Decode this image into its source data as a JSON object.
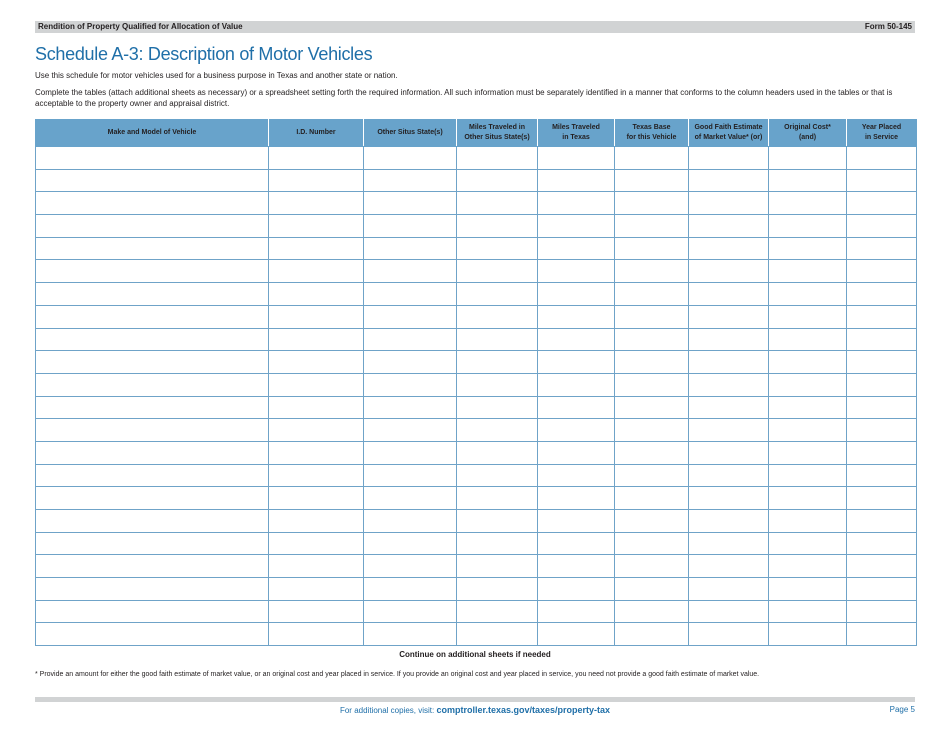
{
  "header": {
    "left": "Rendition of Property Qualified for Allocation of Value",
    "right": "Form 50-145"
  },
  "title": "Schedule A-3: Description of Motor Vehicles",
  "intro1": "Use this schedule for motor vehicles used for a business purpose in Texas and another state or nation.",
  "intro2": "Complete the tables (attach additional sheets as necessary) or a spreadsheet setting forth the required information. All such information must be separately identified in a manner that conforms to the column headers used in the tables or that is acceptable to the property owner and appraisal district.",
  "table": {
    "columns": [
      {
        "l1": "Make and Model of Vehicle",
        "l2": ""
      },
      {
        "l1": "I.D. Number",
        "l2": ""
      },
      {
        "l1": "Other Situs State(s)",
        "l2": ""
      },
      {
        "l1": "Miles Traveled in",
        "l2": "Other Situs State(s)"
      },
      {
        "l1": "Miles Traveled",
        "l2": "in Texas"
      },
      {
        "l1": "Texas Base",
        "l2": "for this Vehicle"
      },
      {
        "l1": "Good Faith Estimate",
        "l2": "of Market Value* (or)"
      },
      {
        "l1": "Original Cost*",
        "l2": "(and)"
      },
      {
        "l1": "Year Placed",
        "l2": "in Service"
      }
    ],
    "rows": [
      [
        "",
        "",
        "",
        "",
        "",
        "",
        "",
        "",
        ""
      ],
      [
        "",
        "",
        "",
        "",
        "",
        "",
        "",
        "",
        ""
      ],
      [
        "",
        "",
        "",
        "",
        "",
        "",
        "",
        "",
        ""
      ],
      [
        "",
        "",
        "",
        "",
        "",
        "",
        "",
        "",
        ""
      ],
      [
        "",
        "",
        "",
        "",
        "",
        "",
        "",
        "",
        ""
      ],
      [
        "",
        "",
        "",
        "",
        "",
        "",
        "",
        "",
        ""
      ],
      [
        "",
        "",
        "",
        "",
        "",
        "",
        "",
        "",
        ""
      ],
      [
        "",
        "",
        "",
        "",
        "",
        "",
        "",
        "",
        ""
      ],
      [
        "",
        "",
        "",
        "",
        "",
        "",
        "",
        "",
        ""
      ],
      [
        "",
        "",
        "",
        "",
        "",
        "",
        "",
        "",
        ""
      ],
      [
        "",
        "",
        "",
        "",
        "",
        "",
        "",
        "",
        ""
      ],
      [
        "",
        "",
        "",
        "",
        "",
        "",
        "",
        "",
        ""
      ],
      [
        "",
        "",
        "",
        "",
        "",
        "",
        "",
        "",
        ""
      ],
      [
        "",
        "",
        "",
        "",
        "",
        "",
        "",
        "",
        ""
      ],
      [
        "",
        "",
        "",
        "",
        "",
        "",
        "",
        "",
        ""
      ],
      [
        "",
        "",
        "",
        "",
        "",
        "",
        "",
        "",
        ""
      ],
      [
        "",
        "",
        "",
        "",
        "",
        "",
        "",
        "",
        ""
      ],
      [
        "",
        "",
        "",
        "",
        "",
        "",
        "",
        "",
        ""
      ],
      [
        "",
        "",
        "",
        "",
        "",
        "",
        "",
        "",
        ""
      ],
      [
        "",
        "",
        "",
        "",
        "",
        "",
        "",
        "",
        ""
      ],
      [
        "",
        "",
        "",
        "",
        "",
        "",
        "",
        "",
        ""
      ],
      [
        "",
        "",
        "",
        "",
        "",
        "",
        "",
        "",
        ""
      ]
    ]
  },
  "continue_note": "Continue on additional sheets if needed",
  "footnote": "* Provide an amount for either the good faith estimate of market value, or an original cost and year placed in service. If you provide an original cost and year placed in service, you need not provide a good faith estimate of market value.",
  "footer": {
    "prefix": "For additional copies, visit: ",
    "link": "comptroller.texas.gov/taxes/property-tax",
    "page": "Page 5"
  },
  "colors": {
    "accent": "#1f6fa8",
    "header_fill": "#68a3cb",
    "bar": "#d1d3d4"
  }
}
